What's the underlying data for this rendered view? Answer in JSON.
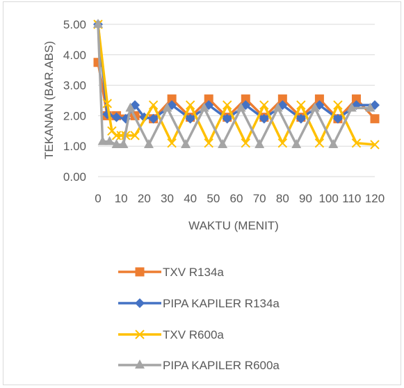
{
  "chart_data": {
    "type": "line",
    "title": "",
    "xlabel": "WAKTU (MENIT)",
    "ylabel": "TEKANAN (BAR.ABS)",
    "ylim": [
      0,
      5
    ],
    "y_ticks": [
      "0.00",
      "1.00",
      "2.00",
      "3.00",
      "4.00",
      "5.00"
    ],
    "x_ticks": [
      "0",
      "10",
      "20",
      "30",
      "40",
      "50",
      "60",
      "70",
      "80",
      "90",
      "100",
      "110",
      "120"
    ],
    "grid": "horizontal",
    "legend_position": "bottom",
    "series": [
      {
        "name": "TXV R134a",
        "color": "#ed7d31",
        "marker": "square",
        "points": [
          [
            0,
            3.75
          ],
          [
            4,
            2.0
          ],
          [
            8,
            2.0
          ],
          [
            16,
            2.0
          ],
          [
            24,
            1.9
          ],
          [
            32,
            2.55
          ],
          [
            40,
            1.95
          ],
          [
            48,
            2.55
          ],
          [
            56,
            1.95
          ],
          [
            64,
            2.55
          ],
          [
            72,
            1.95
          ],
          [
            80,
            2.55
          ],
          [
            88,
            1.95
          ],
          [
            96,
            2.55
          ],
          [
            104,
            1.9
          ],
          [
            112,
            2.55
          ],
          [
            120,
            1.9
          ]
        ]
      },
      {
        "name": "PIPA KAPILER R134a",
        "color": "#4472c4",
        "marker": "diamond",
        "points": [
          [
            0,
            5.0
          ],
          [
            4,
            2.05
          ],
          [
            8,
            1.95
          ],
          [
            12,
            1.9
          ],
          [
            16,
            2.35
          ],
          [
            20,
            1.95
          ],
          [
            24,
            1.9
          ],
          [
            32,
            2.35
          ],
          [
            40,
            1.9
          ],
          [
            48,
            2.35
          ],
          [
            56,
            1.9
          ],
          [
            64,
            2.35
          ],
          [
            72,
            1.9
          ],
          [
            80,
            2.35
          ],
          [
            88,
            1.9
          ],
          [
            96,
            2.35
          ],
          [
            104,
            1.9
          ],
          [
            112,
            2.35
          ],
          [
            120,
            2.35
          ]
        ]
      },
      {
        "name": "TXV R600a",
        "color": "#ffc000",
        "marker": "x",
        "points": [
          [
            0,
            5.0
          ],
          [
            4,
            2.4
          ],
          [
            6,
            1.5
          ],
          [
            8,
            1.35
          ],
          [
            10,
            1.35
          ],
          [
            12,
            1.35
          ],
          [
            16,
            1.35
          ],
          [
            24,
            2.35
          ],
          [
            32,
            1.1
          ],
          [
            40,
            2.35
          ],
          [
            48,
            1.1
          ],
          [
            56,
            2.35
          ],
          [
            64,
            1.1
          ],
          [
            72,
            2.35
          ],
          [
            80,
            1.1
          ],
          [
            88,
            2.35
          ],
          [
            96,
            1.1
          ],
          [
            104,
            2.35
          ],
          [
            112,
            1.1
          ],
          [
            120,
            1.05
          ]
        ]
      },
      {
        "name": "PIPA KAPILER R600a",
        "color": "#a5a5a5",
        "marker": "triangle",
        "points": [
          [
            0,
            5.0
          ],
          [
            2,
            1.15
          ],
          [
            5,
            1.15
          ],
          [
            8,
            1.05
          ],
          [
            11,
            1.05
          ],
          [
            14,
            2.25
          ],
          [
            22,
            1.05
          ],
          [
            30,
            2.25
          ],
          [
            38,
            1.05
          ],
          [
            46,
            2.25
          ],
          [
            54,
            1.05
          ],
          [
            62,
            2.25
          ],
          [
            70,
            1.05
          ],
          [
            78,
            2.25
          ],
          [
            86,
            1.05
          ],
          [
            94,
            2.25
          ],
          [
            102,
            1.05
          ],
          [
            110,
            2.25
          ],
          [
            118,
            2.25
          ]
        ]
      }
    ]
  }
}
